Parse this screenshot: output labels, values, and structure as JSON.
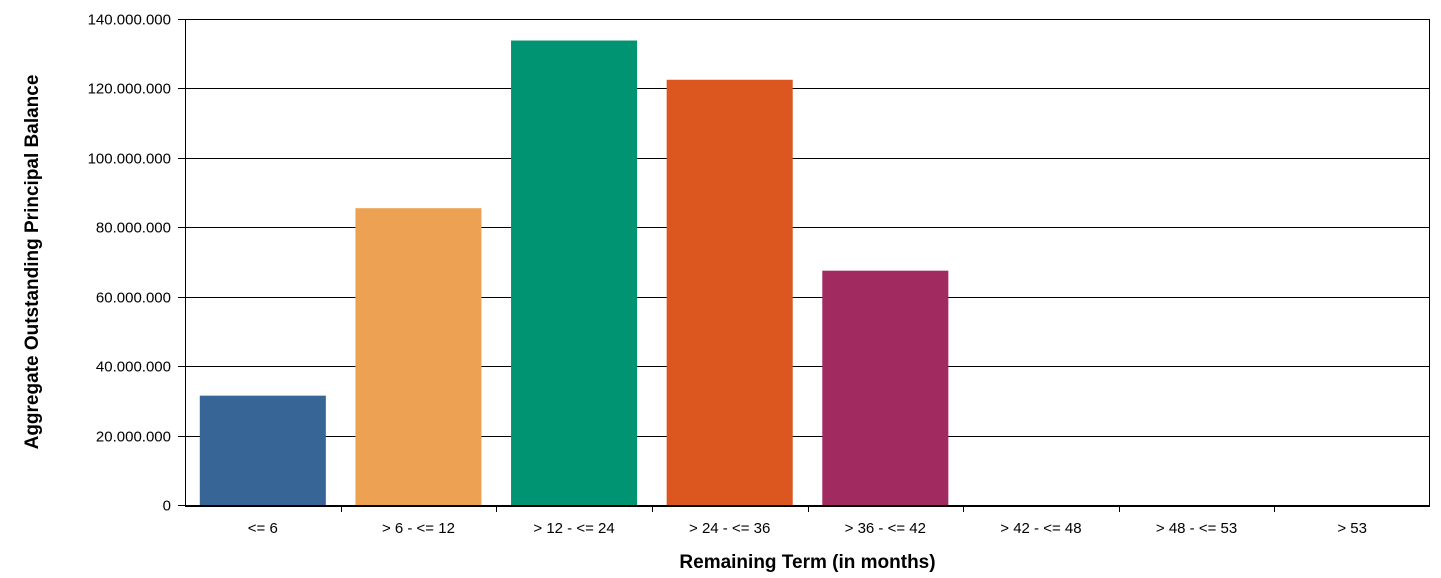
{
  "chart_data": {
    "type": "bar",
    "title": "",
    "xlabel": "Remaining Term (in months)",
    "ylabel": "Aggregate Outstanding Principal Balance",
    "categories": [
      "<= 6",
      "> 6 - <= 12",
      "> 12 - <= 24",
      "> 24 - <= 36",
      "> 36 - <= 42",
      "> 42 - <= 48",
      "> 48 - <= 53",
      "> 53"
    ],
    "values": [
      31500000,
      85500000,
      133800000,
      122500000,
      67500000,
      0,
      0,
      0
    ],
    "bar_colors": [
      "#376595",
      "#EDA253",
      "#009473",
      "#DB571F",
      "#A12B60",
      "#808080",
      "#808080",
      "#808080"
    ],
    "ylim": [
      0,
      140000000
    ],
    "y_ticks": [
      0,
      20000000,
      40000000,
      60000000,
      80000000,
      100000000,
      120000000,
      140000000
    ],
    "y_tick_labels": [
      "0",
      "20.000.000",
      "40.000.000",
      "60.000.000",
      "80.000.000",
      "100.000.000",
      "120.000.000",
      "140.000.000"
    ],
    "grid": true,
    "legend": "none"
  }
}
